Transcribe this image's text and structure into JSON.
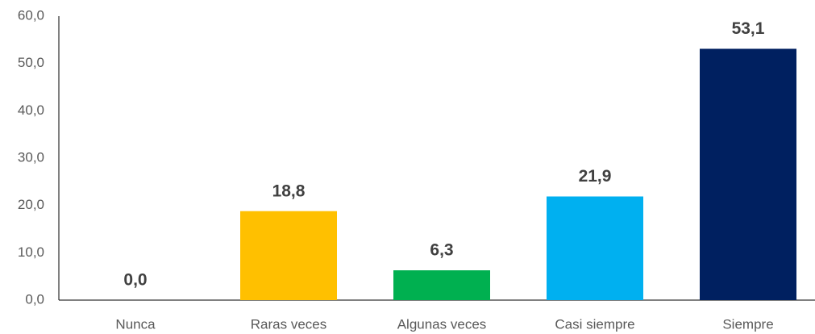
{
  "chart_data": {
    "type": "bar",
    "categories": [
      "Nunca",
      "Raras veces",
      "Algunas veces",
      "Casi siempre",
      "Siempre"
    ],
    "values": [
      0,
      18.8,
      6.3,
      21.9,
      53.1
    ],
    "value_labels": [
      "0,0",
      "18,8",
      "6,3",
      "21,9",
      "53,1"
    ],
    "colors": [
      "#4472c4",
      "#ffc000",
      "#00b050",
      "#00b0f0",
      "#002060"
    ],
    "ylim": [
      0,
      60
    ],
    "yticks": [
      {
        "value": 0,
        "label": "0,0"
      },
      {
        "value": 10,
        "label": "10,0"
      },
      {
        "value": 20,
        "label": "20,0"
      },
      {
        "value": 30,
        "label": "30,0"
      },
      {
        "value": 40,
        "label": "40,0"
      },
      {
        "value": 50,
        "label": "50,0"
      },
      {
        "value": 60,
        "label": "60,0"
      }
    ],
    "grid": false
  }
}
